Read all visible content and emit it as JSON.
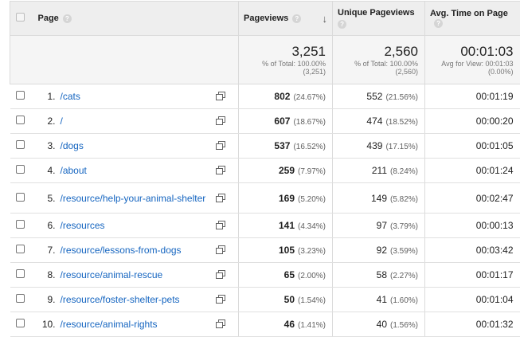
{
  "header": {
    "page": "Page",
    "pageviews": "Pageviews",
    "unique_pageviews": "Unique Pageviews",
    "avg_time": "Avg. Time on Page",
    "help_glyph": "?",
    "sort_glyph": "↓"
  },
  "totals": {
    "pageviews": "3,251",
    "pageviews_sub1": "% of Total: 100.00%",
    "pageviews_sub2": "(3,251)",
    "unique": "2,560",
    "unique_sub1": "% of Total: 100.00%",
    "unique_sub2": "(2,560)",
    "avg_time": "00:01:03",
    "avg_sub1": "Avg for View: 00:01:03",
    "avg_sub2": "(0.00%)"
  },
  "rows": [
    {
      "index": "1.",
      "page": "/cats",
      "pageviews": "802",
      "pv_pct": "(24.67%)",
      "unique": "552",
      "u_pct": "(21.56%)",
      "avg": "00:01:19"
    },
    {
      "index": "2.",
      "page": "/",
      "pageviews": "607",
      "pv_pct": "(18.67%)",
      "unique": "474",
      "u_pct": "(18.52%)",
      "avg": "00:00:20"
    },
    {
      "index": "3.",
      "page": "/dogs",
      "pageviews": "537",
      "pv_pct": "(16.52%)",
      "unique": "439",
      "u_pct": "(17.15%)",
      "avg": "00:01:05"
    },
    {
      "index": "4.",
      "page": "/about",
      "pageviews": "259",
      "pv_pct": "(7.97%)",
      "unique": "211",
      "u_pct": "(8.24%)",
      "avg": "00:01:24"
    },
    {
      "index": "5.",
      "page": "/resource/help-your-animal-shelter",
      "pageviews": "169",
      "pv_pct": "(5.20%)",
      "unique": "149",
      "u_pct": "(5.82%)",
      "avg": "00:02:47"
    },
    {
      "index": "6.",
      "page": "/resources",
      "pageviews": "141",
      "pv_pct": "(4.34%)",
      "unique": "97",
      "u_pct": "(3.79%)",
      "avg": "00:00:13"
    },
    {
      "index": "7.",
      "page": "/resource/lessons-from-dogs",
      "pageviews": "105",
      "pv_pct": "(3.23%)",
      "unique": "92",
      "u_pct": "(3.59%)",
      "avg": "00:03:42"
    },
    {
      "index": "8.",
      "page": "/resource/animal-rescue",
      "pageviews": "65",
      "pv_pct": "(2.00%)",
      "unique": "58",
      "u_pct": "(2.27%)",
      "avg": "00:01:17"
    },
    {
      "index": "9.",
      "page": "/resource/foster-shelter-pets",
      "pageviews": "50",
      "pv_pct": "(1.54%)",
      "unique": "41",
      "u_pct": "(1.60%)",
      "avg": "00:01:04"
    },
    {
      "index": "10.",
      "page": "/resource/animal-rights",
      "pageviews": "46",
      "pv_pct": "(1.41%)",
      "unique": "40",
      "u_pct": "(1.56%)",
      "avg": "00:01:32"
    }
  ],
  "icons": {
    "row_action": "open-in-new-window-icon",
    "help": "help-icon",
    "sort": "sort-descending-icon"
  },
  "colors": {
    "link": "#1565c0",
    "header_bg": "#eeeeee",
    "totals_bg": "#f5f5f5"
  }
}
